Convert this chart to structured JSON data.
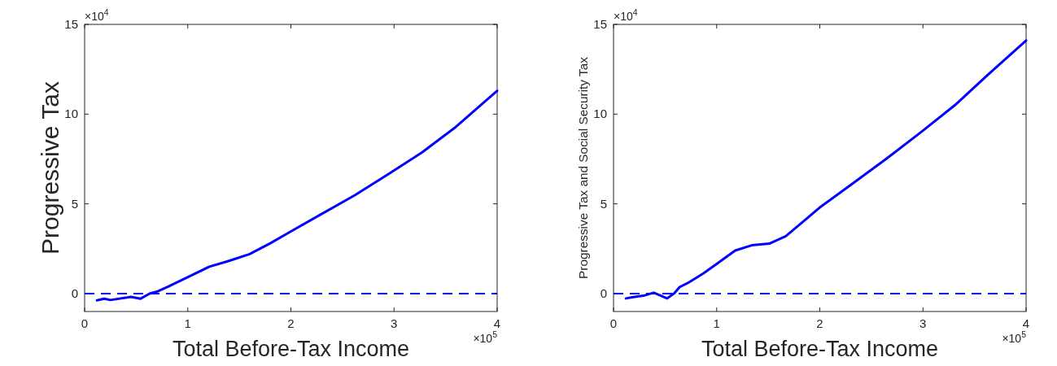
{
  "chart_data": [
    {
      "type": "line",
      "ylabel": "Progressive Tax",
      "xlabel": "Total Before-Tax Income",
      "annotations": [
        "×10$^{4}$",
        "×10$^{5}$"
      ],
      "xlim": [
        0,
        4
      ],
      "xticks": [
        0,
        1,
        2,
        3,
        4
      ],
      "ylim": [
        -1,
        15
      ],
      "yticks": [
        0,
        5,
        10,
        15
      ],
      "line_style": "solid",
      "marker": "none",
      "grid": false,
      "ref_lines": [
        {
          "axis": "y",
          "value": 0,
          "color": "#0000ff",
          "line_style": "dashed"
        }
      ],
      "series": [
        {
          "color": "#0000ff",
          "x": [
            0.12,
            0.19,
            0.25,
            0.45,
            0.54,
            0.63,
            0.71,
            0.81,
            0.99,
            1.21,
            1.4,
            1.6,
            1.8,
            1.99,
            2.29,
            2.62,
            2.94,
            3.27,
            3.6,
            4
          ],
          "values": [
            -0.38,
            -0.29,
            -0.36,
            -0.18,
            -0.29,
            0,
            0.13,
            0.39,
            0.89,
            1.5,
            1.82,
            2.2,
            2.8,
            3.43,
            4.41,
            5.48,
            6.64,
            7.86,
            9.29,
            11.3
          ]
        }
      ]
    },
    {
      "type": "line",
      "ylabel": "Progressive Tax and Social Security Tax",
      "xlabel": "Total Before-Tax Income",
      "annotations": [
        "×10$^{4}$",
        "×10$^{5}$"
      ],
      "xlim": [
        0,
        4
      ],
      "xticks": [
        0,
        1,
        2,
        3,
        4
      ],
      "ylim": [
        -1,
        15
      ],
      "yticks": [
        0,
        5,
        10,
        15
      ],
      "line_style": "solid",
      "marker": "none",
      "grid": false,
      "ref_lines": [
        {
          "axis": "y",
          "value": 0,
          "color": "#0000ff",
          "line_style": "dashed"
        }
      ],
      "series": [
        {
          "color": "#0000ff",
          "x": [
            0.12,
            0.18,
            0.29,
            0.39,
            0.52,
            0.59,
            0.64,
            0.72,
            0.87,
            1.0,
            1.18,
            1.34,
            1.51,
            1.67,
            1.83,
            2.0,
            2.32,
            2.65,
            2.98,
            3.31,
            3.63,
            4
          ],
          "values": [
            -0.27,
            -0.21,
            -0.12,
            0.05,
            -0.27,
            0.02,
            0.36,
            0.59,
            1.12,
            1.65,
            2.4,
            2.69,
            2.78,
            3.2,
            3.97,
            4.8,
            6.14,
            7.53,
            8.99,
            10.5,
            12.2,
            14.1
          ]
        }
      ]
    }
  ]
}
